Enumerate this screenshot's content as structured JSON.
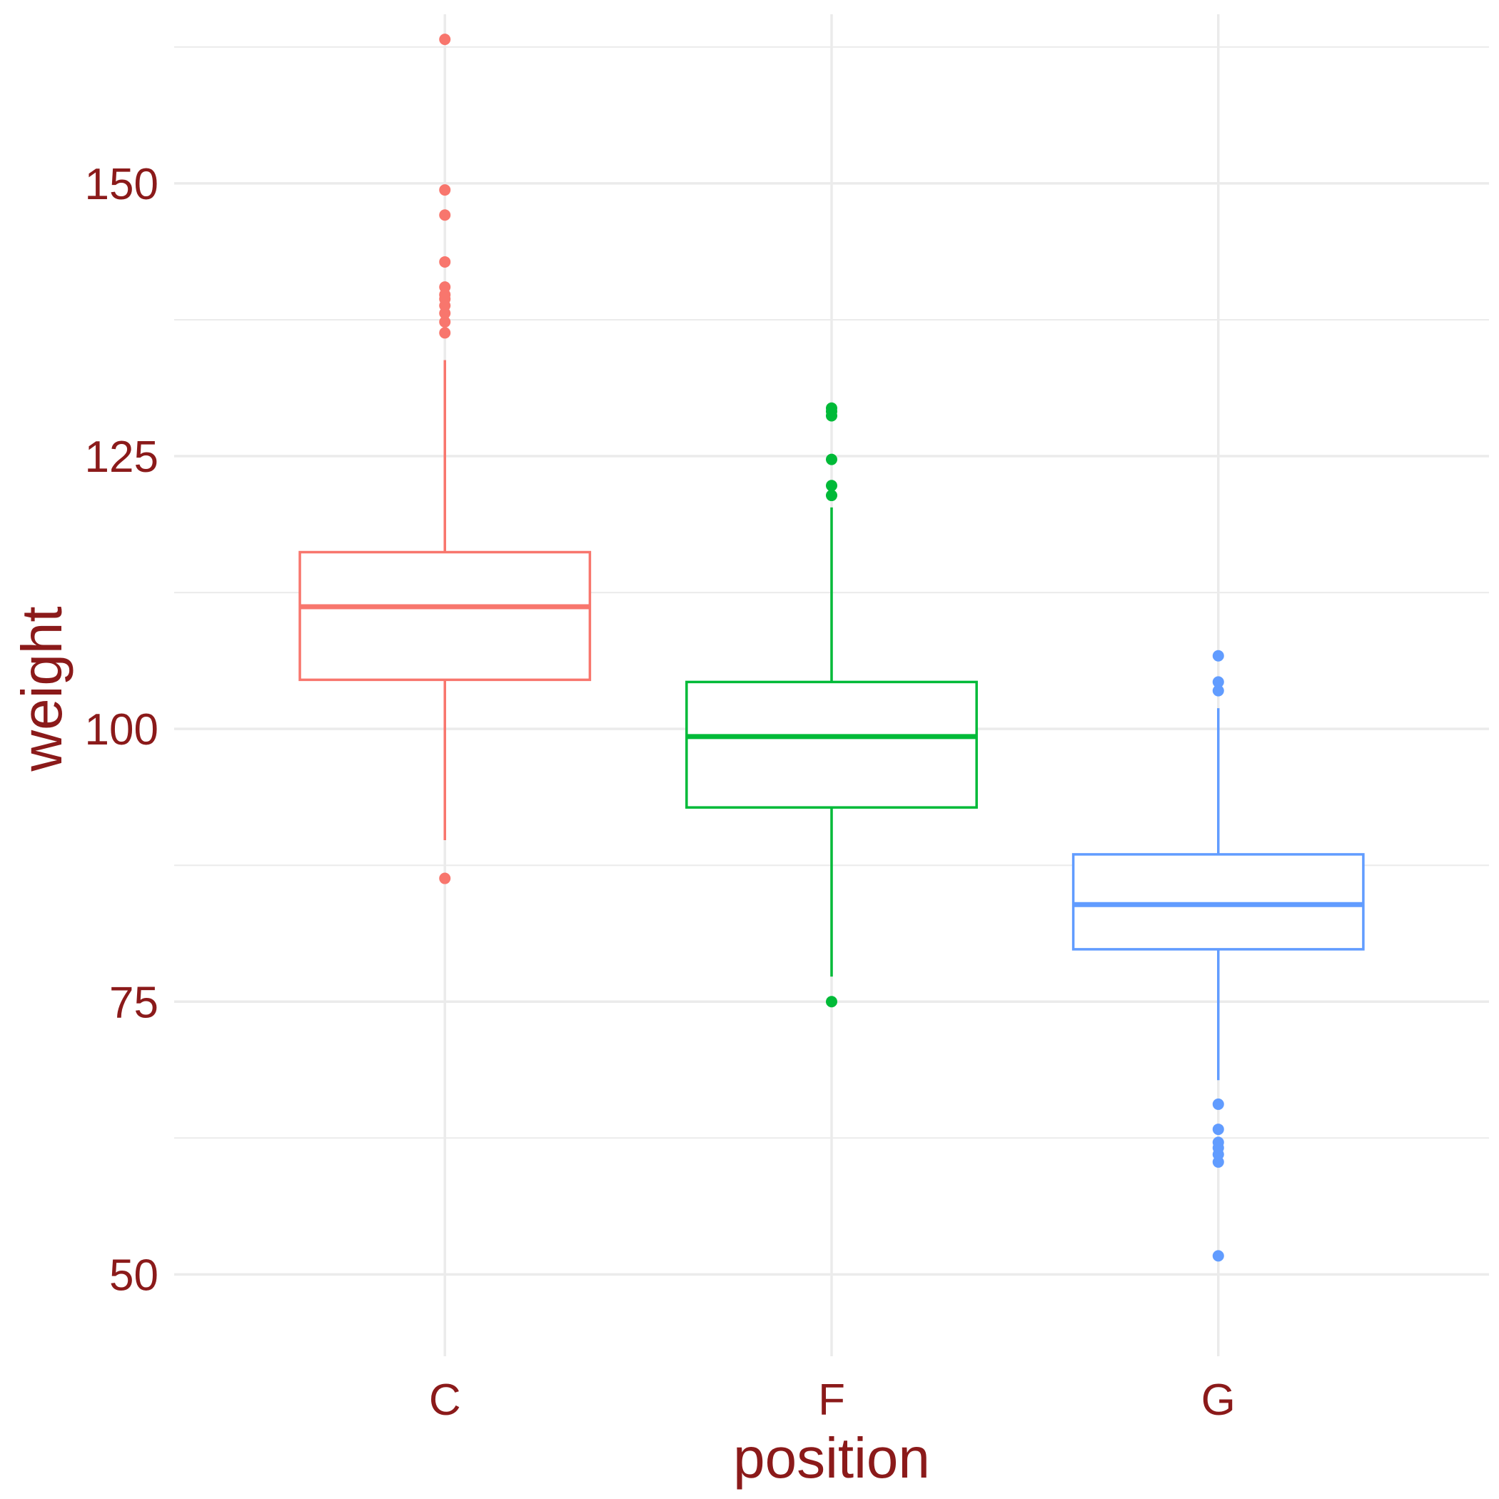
{
  "chart_data": {
    "type": "box",
    "xlabel": "position",
    "ylabel": "weight",
    "ylim": [
      42.5,
      165.5
    ],
    "yticks": [
      50,
      75,
      100,
      125,
      150
    ],
    "y_minor_gridlines": [
      62.5,
      87.5,
      112.5,
      137.5,
      162.5
    ],
    "grid": true,
    "legend": "none",
    "text_color": "#8b1a1a",
    "grid_color": "#ebebeb",
    "categories": [
      "C",
      "F",
      "G"
    ],
    "boxes": [
      {
        "category": "C",
        "color": "#f8766d",
        "q1": 104.5,
        "median": 111.2,
        "q3": 116.2,
        "whisker_low": 89.8,
        "whisker_high": 133.8,
        "outliers": [
          86.3,
          136.3,
          137.3,
          138.1,
          138.8,
          139.4,
          139.8,
          140.5,
          142.8,
          147.1,
          149.4,
          163.2
        ]
      },
      {
        "category": "F",
        "color": "#00ba38",
        "q1": 92.8,
        "median": 99.3,
        "q3": 104.3,
        "whisker_low": 77.3,
        "whisker_high": 120.3,
        "outliers": [
          75.0,
          121.4,
          122.3,
          124.7,
          128.7,
          129.1,
          129.4
        ]
      },
      {
        "category": "G",
        "color": "#619cff",
        "q1": 79.8,
        "median": 83.9,
        "q3": 88.5,
        "whisker_low": 67.8,
        "whisker_high": 101.9,
        "outliers": [
          51.7,
          60.3,
          61.0,
          61.6,
          62.1,
          63.3,
          65.6,
          103.5,
          104.3,
          106.7
        ]
      }
    ]
  }
}
